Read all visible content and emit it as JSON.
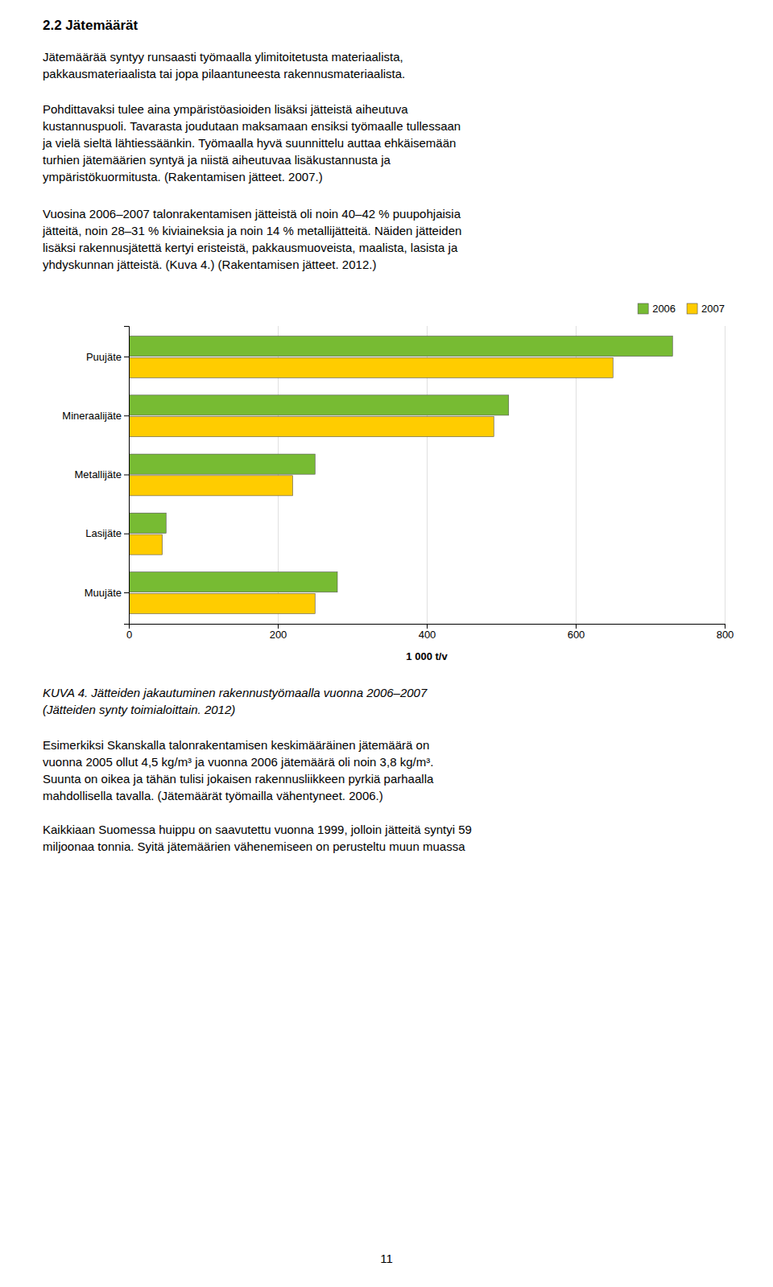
{
  "page_title": "2.2 Jätemäärät",
  "text_blocks": [
    "Jätemäärää syntyy runsaasti työmaalla ylimitoitetusta materiaalista,\npakkausmateriaalista tai jopa pilaantuneesta rakennusmateriaalista.",
    "Pohdittavaksi tulee aina ympäristöasioiden lisäksi jätteistä aiheutuva\nkustannuspuoli. Tavarasta joudutaan maksamaan ensiksi työmaalle tullessaan\nja vielä sieltä lähtiessäänkin. Työmaalla hyvä suunnittelu auttaa ehkäisemään\nturhien jätemäärien syntyä ja niistä aiheutuvaa lisäkustannusta ja\nympäristökuormitusta. (Rakentamisen jätteet. 2007.)",
    "Vuosina 2006–2007 talonrakentamisen jätteistä oli noin 40–42 % puupohjaisia\njätteitä, noin 28–31 % kiviaineksia ja noin 14 % metallijätteitä. Näiden jätteiden\nlisäksi rakennusjätettä kertyi eristeistä, pakkausmuoveista, maalista, lasista ja\nyhdyskunnan jätteistä. (Kuva 4.) (Rakentamisen jätteet. 2012.)"
  ],
  "caption": "KUVA 4. Jätteiden jakautuminen rakennustyömaalla vuonna 2006–2007\n(Jätteiden synty toimialoittain. 2012)",
  "text_after": [
    "Esimerkiksi Skanskalla talonrakentamisen keskimääräinen jätemäärä on\nvuonna 2005 ollut 4,5 kg/m³ ja vuonna 2006 jätemäärä oli noin 3,8 kg/m³.\nSuunta on oikea ja tähän tulisi jokaisen rakennusliikkeen pyrkiä parhaalla\nmahdollisella tavalla. (Jätemäärät työmailla vähentyneet. 2006.)",
    "Kaikkiaan Suomessa huippu on saavutettu vuonna 1999, jolloin jätteitä syntyi 59\nmiljoonaa tonnia. Syitä jätemäärien vähenemiseen on perusteltu muun muassa"
  ],
  "page_number": "11",
  "chart_data": {
    "type": "bar",
    "orientation": "horizontal",
    "categories": [
      "Muujäte",
      "Lasijäte",
      "Metallijäte",
      "Mineraalijäte",
      "Puujäte"
    ],
    "series": [
      {
        "name": "2006",
        "color": "#77bb33",
        "values": [
          280,
          50,
          250,
          510,
          730
        ]
      },
      {
        "name": "2007",
        "color": "#ffcc00",
        "values": [
          250,
          45,
          220,
          490,
          650
        ]
      }
    ],
    "xlabel": "1 000 t/v",
    "xlim": [
      0,
      800
    ],
    "xticks": [
      0,
      200,
      400,
      600,
      800
    ],
    "grid": true,
    "legend": "upper right"
  }
}
